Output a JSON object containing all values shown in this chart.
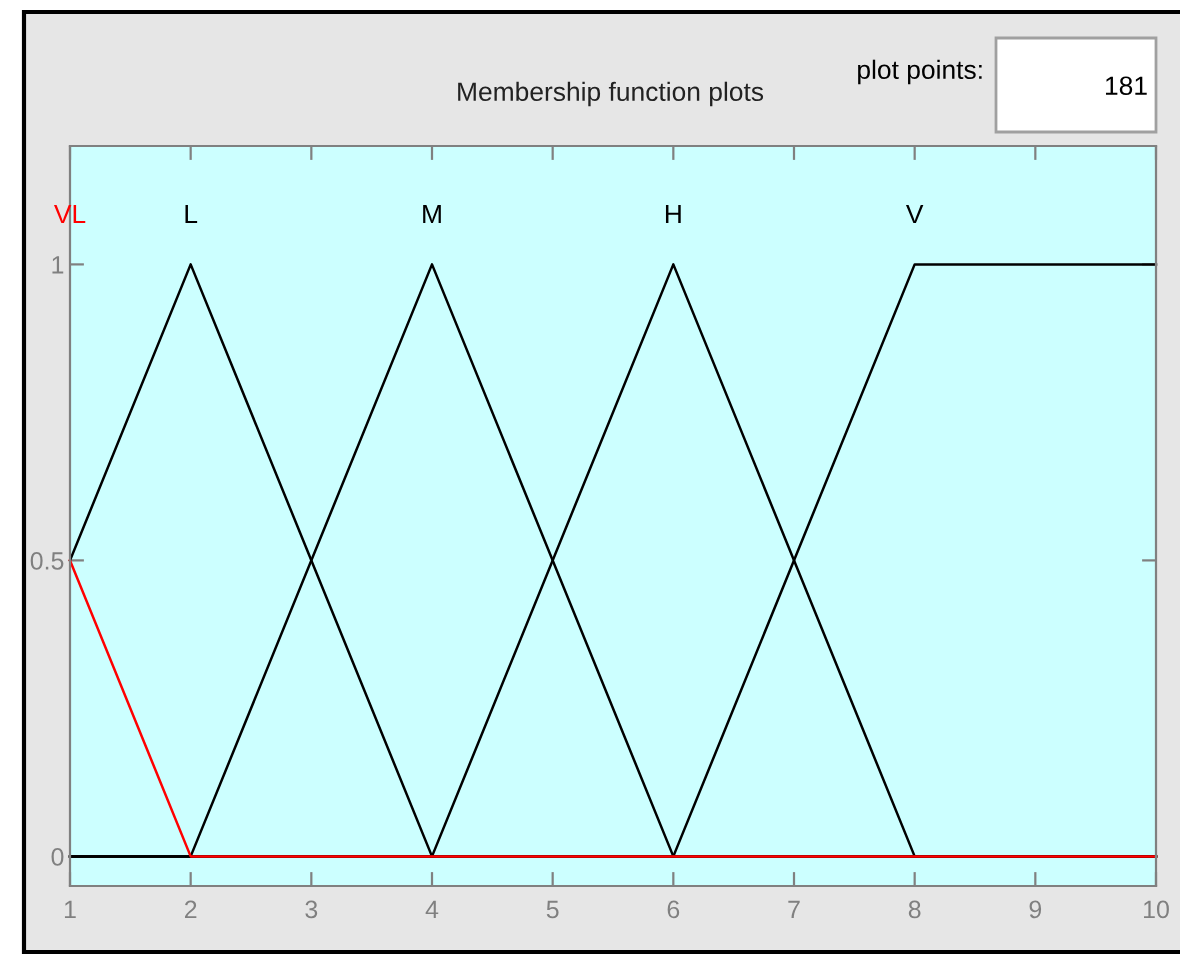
{
  "chart_data": {
    "type": "line",
    "title": "Membership function plots",
    "annotations": [
      "plot points:",
      "181"
    ],
    "x": [
      1,
      2,
      4,
      6,
      8,
      10
    ],
    "series": [
      {
        "name": "L",
        "color": "#000000",
        "values": [
          0.5,
          1,
          0,
          0,
          0,
          0
        ]
      },
      {
        "name": "M",
        "color": "#000000",
        "values": [
          0,
          0,
          1,
          0,
          0,
          0
        ]
      },
      {
        "name": "H",
        "color": "#000000",
        "values": [
          0,
          0,
          0,
          1,
          0,
          0
        ]
      },
      {
        "name": "V",
        "color": "#000000",
        "values": [
          0,
          0,
          0,
          0,
          1,
          1
        ]
      },
      {
        "name": "VL",
        "color": "#ff0000",
        "values": [
          0.5,
          0,
          0,
          0,
          0,
          0
        ]
      }
    ],
    "xlim": [
      1,
      10
    ],
    "ylim": [
      -0.05,
      1.2
    ],
    "xticks": [
      1,
      2,
      3,
      4,
      5,
      6,
      7,
      8,
      9,
      10
    ],
    "yticks": [
      0,
      0.5,
      1
    ],
    "grid": false,
    "legend": false,
    "marker": "none",
    "line_style": "solid"
  }
}
